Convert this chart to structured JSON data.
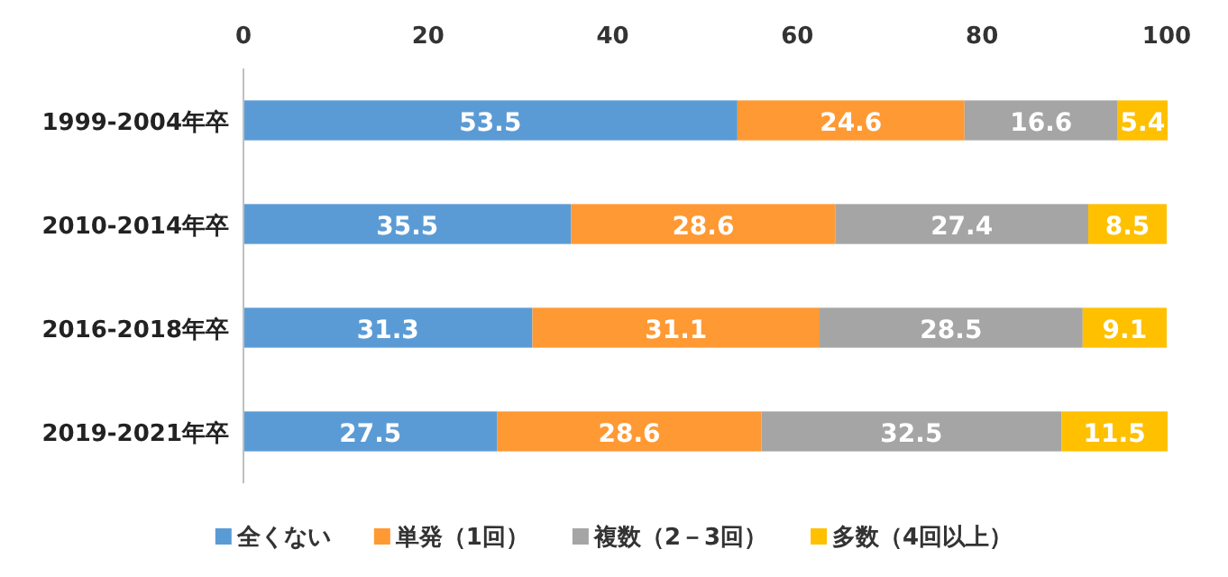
{
  "chart_data": {
    "type": "bar",
    "orientation": "horizontal",
    "stacked": true,
    "categories": [
      "1999-2004年卒",
      "2010-2014年卒",
      "2016-2018年卒",
      "2019-2021年卒"
    ],
    "series": [
      {
        "name": "全くない",
        "color": "#5b9bd5",
        "values": [
          53.5,
          35.5,
          31.3,
          27.5
        ]
      },
      {
        "name": "単発（1回）",
        "color": "#ff9933",
        "values": [
          24.6,
          28.6,
          31.1,
          28.6
        ]
      },
      {
        "name": "複数（2－3回）",
        "color": "#a5a5a5",
        "values": [
          16.6,
          27.4,
          28.5,
          32.5
        ]
      },
      {
        "name": "多数（4回以上）",
        "color": "#ffc000",
        "values": [
          5.4,
          8.5,
          9.1,
          11.5
        ]
      }
    ],
    "xlim": [
      0,
      100
    ],
    "xticks": [
      0,
      20,
      40,
      60,
      80,
      100
    ],
    "data_labels": true,
    "legend": "bottom"
  }
}
